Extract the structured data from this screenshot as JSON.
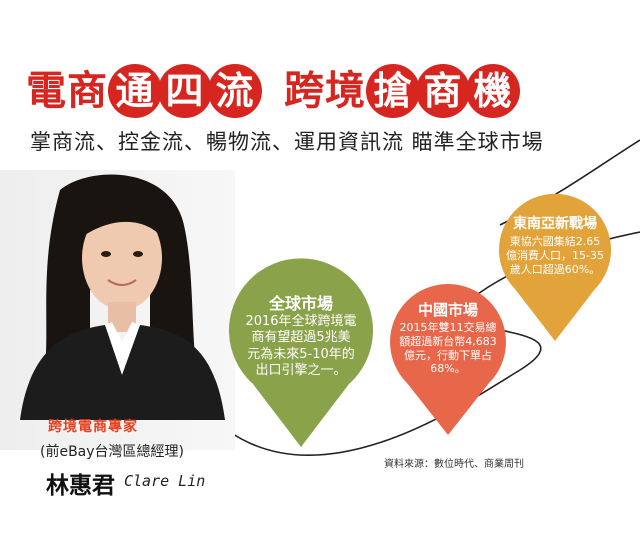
{
  "headline": {
    "part1_plain": "電商",
    "part1_circled": [
      "通",
      "四",
      "流"
    ],
    "part2_plain": "跨境",
    "part2_circled": [
      "搶",
      "商",
      "機"
    ]
  },
  "subtitle": "掌商流、控金流、暢物流、運用資訊流 瞄準全球市場",
  "colors": {
    "headline_red": "#d7261f",
    "green": "#8aa24a",
    "orange": "#e8674a",
    "amber": "#e2a33a"
  },
  "person": {
    "role": "跨境電商專家",
    "former_title": "(前eBay台灣區總經理)",
    "name_cn": "林惠君",
    "name_en": "Clare Lin"
  },
  "pins": [
    {
      "title": "全球市場",
      "body": "2016年全球跨境電商有望超過5兆美元為未來5-10年的出口引擎之一。"
    },
    {
      "title": "中國市場",
      "body": "2015年雙11交易總額超過新台幣4,683億元，行動下單占68%。"
    },
    {
      "title": "東南亞新戰場",
      "body": "東協六國集結2.65億消費人口，15-35歲人口超過60%。"
    }
  ],
  "source": "資料來源：數位時代、商業周刊"
}
